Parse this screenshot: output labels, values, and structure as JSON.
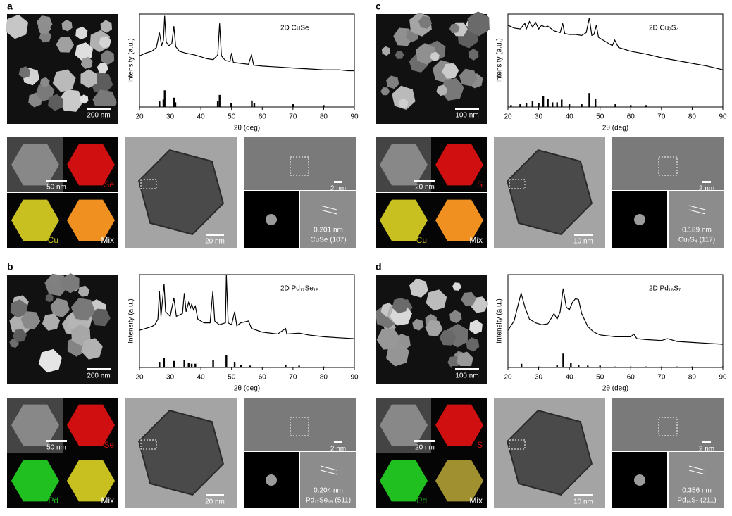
{
  "chart_data": [
    {
      "type": "line",
      "title": "2D CuSe",
      "x_label": "2θ (deg)",
      "y_label": "Intensity (a.u.)",
      "xlim": [
        20,
        90
      ],
      "ylim": [
        0,
        100
      ],
      "xticks": [
        20,
        30,
        40,
        50,
        60,
        70,
        80,
        90
      ],
      "color": "#000000",
      "x": [
        20,
        22,
        24,
        25.5,
        26.5,
        27.2,
        27.8,
        28.2,
        28.7,
        29.5,
        30.5,
        31.2,
        31.8,
        33,
        35,
        38,
        40,
        42,
        44,
        45.5,
        46.1,
        46.7,
        48,
        49.5,
        50,
        50.6,
        53,
        55.5,
        56.5,
        57.2,
        60,
        65,
        70,
        75,
        80,
        85,
        88,
        90
      ],
      "values": [
        55,
        58,
        60,
        64,
        80,
        66,
        72,
        98,
        70,
        66,
        68,
        87,
        65,
        60,
        58,
        56,
        54,
        52,
        51,
        56,
        90,
        55,
        50,
        49,
        58,
        48,
        47,
        46,
        56,
        45,
        44,
        43,
        42,
        41,
        40,
        40,
        39,
        39
      ],
      "ref_x": [
        26.5,
        27.8,
        28.2,
        31.2,
        31.7,
        45.5,
        46.1,
        49.9,
        56.6,
        57.4,
        70,
        80
      ],
      "ref_values": [
        6,
        8,
        18,
        10,
        5,
        6,
        13,
        4,
        7,
        4,
        3,
        2
      ]
    },
    {
      "type": "line",
      "title": "2D Pd₁₇Se₁₅",
      "x_label": "2θ (deg)",
      "y_label": "Intensity (a.u.)",
      "xlim": [
        20,
        90
      ],
      "ylim": [
        0,
        100
      ],
      "xticks": [
        20,
        30,
        40,
        50,
        60,
        70,
        80,
        90
      ],
      "color": "#000000",
      "x": [
        20,
        22,
        24,
        25,
        26,
        26.5,
        27,
        28,
        28.5,
        30,
        31.2,
        32,
        34,
        34.6,
        35.2,
        36,
        36.6,
        37,
        37.6,
        38.2,
        39,
        41,
        43,
        43.9,
        44.5,
        46,
        48,
        48.3,
        48.9,
        50,
        51,
        51.7,
        53,
        55.5,
        56.5,
        60,
        65,
        67.6,
        68,
        72,
        75,
        80,
        85,
        90
      ],
      "values": [
        40,
        42,
        44,
        46,
        52,
        82,
        55,
        90,
        60,
        55,
        75,
        55,
        58,
        80,
        60,
        70,
        64,
        68,
        62,
        66,
        52,
        48,
        48,
        82,
        50,
        46,
        48,
        100,
        48,
        46,
        60,
        45,
        48,
        50,
        42,
        38,
        36,
        42,
        36,
        37,
        35,
        33,
        32,
        31
      ],
      "ref_x": [
        26.5,
        28,
        31.2,
        34.6,
        36,
        37,
        38.2,
        44,
        48.3,
        51,
        53,
        56,
        67.6,
        72,
        80
      ],
      "ref_values": [
        6,
        10,
        7,
        8,
        5,
        4,
        4,
        8,
        13,
        6,
        3,
        2,
        3,
        2,
        1
      ]
    },
    {
      "type": "line",
      "title": "2D Cu₇S₄",
      "x_label": "2θ (deg)",
      "y_label": "Intensity (a.u.)",
      "xlim": [
        20,
        90
      ],
      "ylim": [
        0,
        100
      ],
      "xticks": [
        20,
        30,
        40,
        50,
        60,
        70,
        80,
        90
      ],
      "color": "#000000",
      "x": [
        20,
        22,
        24,
        25.5,
        26,
        27,
        28,
        29,
        30,
        31,
        32,
        33,
        35,
        37,
        37.8,
        38.5,
        40,
        42,
        44,
        45.5,
        46.5,
        47.3,
        48,
        48.8,
        49.5,
        52,
        54,
        54.8,
        56,
        60,
        65,
        70,
        75,
        80,
        85,
        90
      ],
      "values": [
        88,
        85,
        84,
        90,
        84,
        92,
        86,
        91,
        84,
        88,
        86,
        87,
        82,
        80,
        90,
        79,
        78,
        78,
        77,
        80,
        96,
        77,
        78,
        88,
        75,
        70,
        66,
        72,
        64,
        60,
        57,
        53,
        50,
        47,
        44,
        40
      ],
      "ref_x": [
        21,
        24,
        26,
        28,
        30,
        31.5,
        33,
        34.5,
        36,
        37.5,
        40,
        44,
        46.5,
        48.5,
        55,
        60,
        65
      ],
      "ref_values": [
        2,
        3,
        4,
        6,
        4,
        12,
        9,
        5,
        5,
        8,
        3,
        3,
        15,
        9,
        3,
        2,
        2
      ]
    },
    {
      "type": "line",
      "title": "2D Pd₁₆S₇",
      "x_label": "2θ (deg)",
      "y_label": "Intensity (a.u.)",
      "xlim": [
        20,
        90
      ],
      "ylim": [
        0,
        100
      ],
      "xticks": [
        20,
        30,
        40,
        50,
        60,
        70,
        80,
        90
      ],
      "color": "#000000",
      "x": [
        20,
        22,
        23.5,
        24.3,
        25.5,
        27,
        29,
        31,
        33,
        35,
        36,
        37,
        38,
        39,
        40,
        41,
        42,
        43,
        44,
        46,
        48,
        50,
        55,
        60,
        61,
        62,
        65,
        70,
        72,
        75,
        80,
        85,
        90
      ],
      "values": [
        40,
        50,
        70,
        80,
        65,
        52,
        48,
        46,
        47,
        58,
        52,
        60,
        85,
        65,
        62,
        70,
        74,
        73,
        58,
        44,
        38,
        35,
        33,
        33,
        36,
        31,
        30,
        29,
        31,
        28,
        27,
        26,
        25
      ],
      "ref_x": [
        24.4,
        30,
        36,
        38,
        40.5,
        43,
        46,
        50,
        55,
        60,
        65,
        70,
        75,
        80,
        90
      ],
      "ref_values": [
        4,
        1,
        3,
        15,
        5,
        3,
        2,
        2,
        1,
        1,
        1,
        1,
        1,
        1,
        1
      ]
    }
  ],
  "panels": [
    {
      "label": "a",
      "sem_scale": "200 nm",
      "eds_scale": "50 nm",
      "elements": [
        {
          "name": "Se",
          "color": "#d01010"
        },
        {
          "name": "Cu",
          "color": "#c8c020"
        },
        {
          "name": "Mix",
          "color": "#f09020"
        }
      ],
      "tem_scale": "20 nm",
      "hrtem_scale": "2 nm",
      "d_spacing": "0.201 nm",
      "plane": "CuSe (107)"
    },
    {
      "label": "b",
      "sem_scale": "200 nm",
      "eds_scale": "50 nm",
      "elements": [
        {
          "name": "Se",
          "color": "#d01010"
        },
        {
          "name": "Pd",
          "color": "#20c020"
        },
        {
          "name": "Mix",
          "color": "#c8c020"
        }
      ],
      "tem_scale": "20 nm",
      "hrtem_scale": "2 nm",
      "d_spacing": "0.204 nm",
      "plane": "Pd₁₇Se₁₅ (511)"
    },
    {
      "label": "c",
      "sem_scale": "100 nm",
      "eds_scale": "20 nm",
      "elements": [
        {
          "name": "S",
          "color": "#d01010"
        },
        {
          "name": "Cu",
          "color": "#c8c020"
        },
        {
          "name": "Mix",
          "color": "#f09020"
        }
      ],
      "tem_scale": "10 nm",
      "hrtem_scale": "2 nm",
      "d_spacing": "0.189 nm",
      "plane": "Cu₇S₄ (117)"
    },
    {
      "label": "d",
      "sem_scale": "100 nm",
      "eds_scale": "20 nm",
      "elements": [
        {
          "name": "S",
          "color": "#d01010"
        },
        {
          "name": "Pd",
          "color": "#20c020"
        },
        {
          "name": "Mix",
          "color": "#a09030"
        }
      ],
      "tem_scale": "10 nm",
      "hrtem_scale": "2 nm",
      "d_spacing": "0.356 nm",
      "plane": "Pd₁₆S₇ (211)"
    }
  ]
}
